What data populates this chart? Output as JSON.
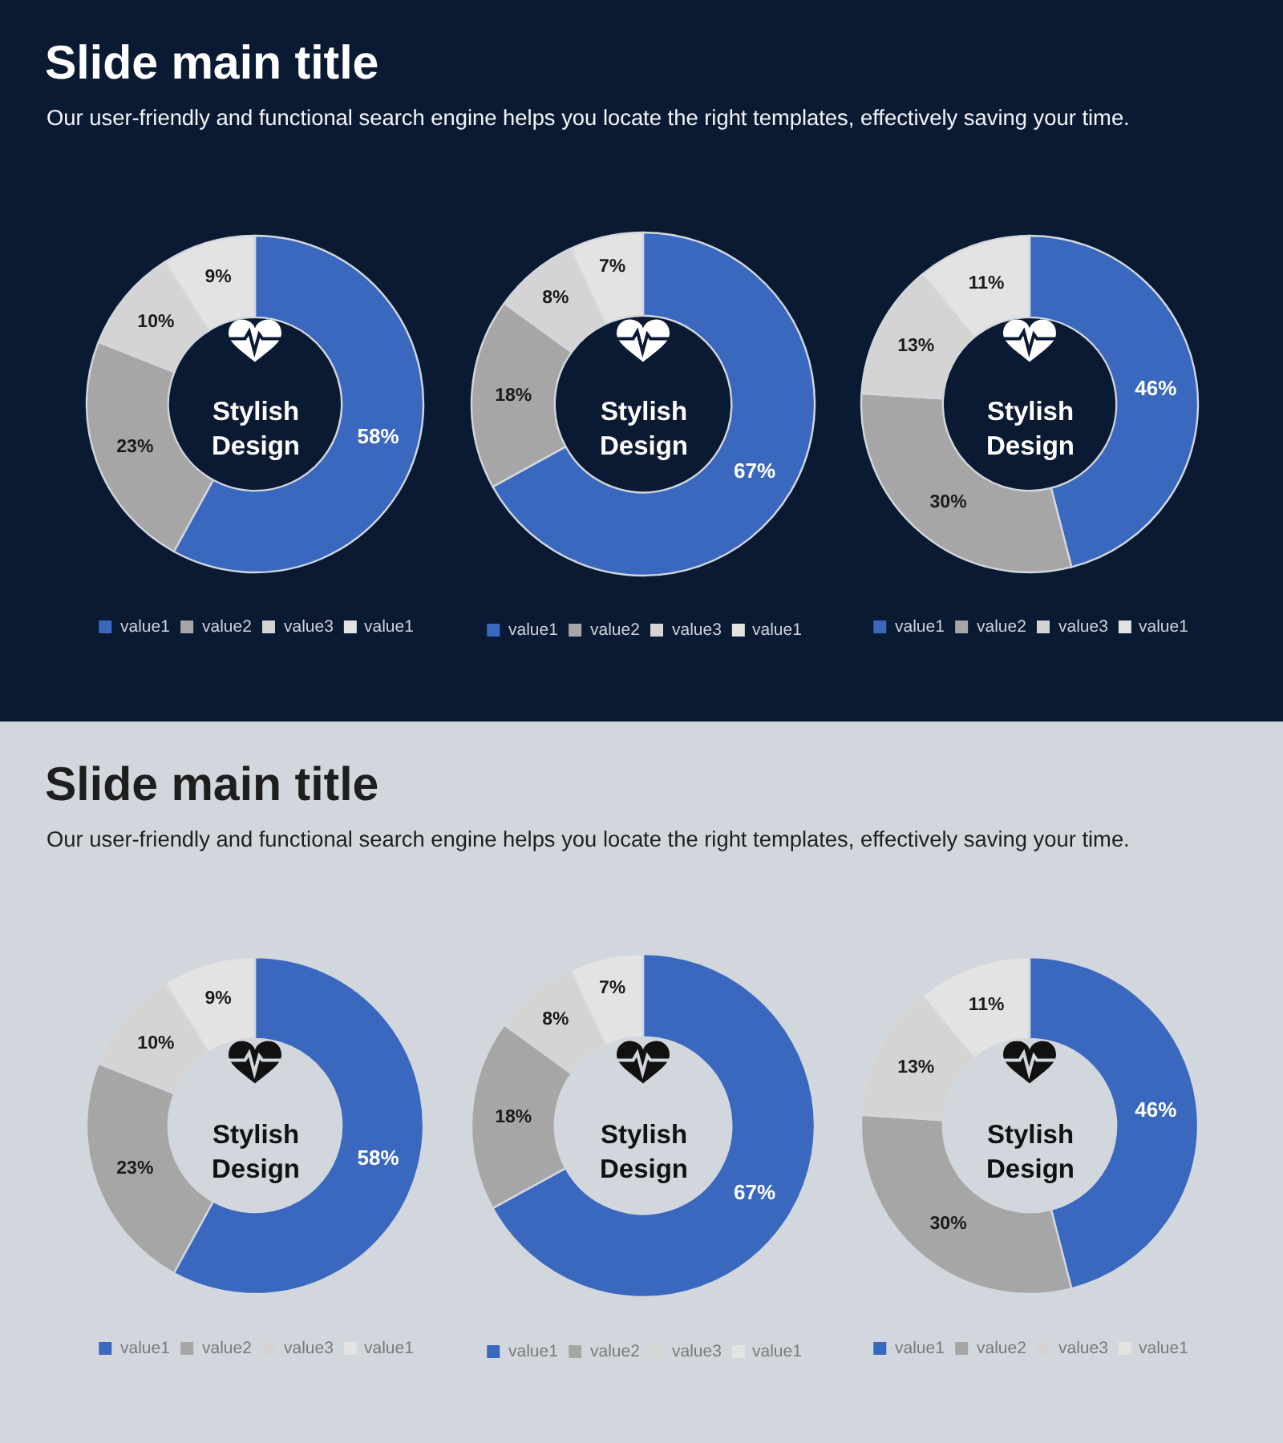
{
  "chart_data": [
    {
      "type": "donut",
      "title": "Slide main title",
      "subtitle": "Our user-friendly and functional search engine helps you locate the right templates, effectively saving your time.",
      "categories": [
        "value1",
        "value2",
        "value3",
        "value1"
      ],
      "values": [
        58,
        23,
        10,
        9
      ],
      "colors": [
        "#3a68bf",
        "#a6a6a6",
        "#d4d4d4",
        "#e3e3e3"
      ],
      "value_labels": [
        "58%",
        "23%",
        "10%",
        "9%"
      ],
      "annotations": [
        "Stylish\nDesign"
      ],
      "legend": "bottom"
    },
    {
      "type": "donut",
      "categories": [
        "value1",
        "value2",
        "value3",
        "value1"
      ],
      "values": [
        67,
        18,
        8,
        7
      ],
      "colors": [
        "#3a68bf",
        "#a6a6a6",
        "#d4d4d4",
        "#e3e3e3"
      ],
      "value_labels": [
        "67%",
        "18%",
        "8%",
        "7%"
      ],
      "annotations": [
        "Stylish\nDesign"
      ],
      "legend": "bottom"
    },
    {
      "type": "donut",
      "categories": [
        "value1",
        "value2",
        "value3",
        "value1"
      ],
      "values": [
        46,
        30,
        13,
        11
      ],
      "colors": [
        "#3a68bf",
        "#a6a6a6",
        "#d4d4d4",
        "#e3e3e3"
      ],
      "value_labels": [
        "46%",
        "30%",
        "13%",
        "11%"
      ],
      "annotations": [
        "Stylish\nDesign"
      ],
      "legend": "bottom"
    },
    {
      "type": "donut",
      "title": "Slide main title",
      "subtitle": "Our user-friendly and functional search engine helps you locate the right templates, effectively saving your time.",
      "categories": [
        "value1",
        "value2",
        "value3",
        "value1"
      ],
      "values": [
        58,
        23,
        10,
        9
      ],
      "colors": [
        "#3a68bf",
        "#a6a6a6",
        "#d4d4d4",
        "#e3e3e3"
      ],
      "value_labels": [
        "58%",
        "23%",
        "10%",
        "9%"
      ],
      "annotations": [
        "Stylish\nDesign"
      ],
      "legend": "bottom"
    },
    {
      "type": "donut",
      "categories": [
        "value1",
        "value2",
        "value3",
        "value1"
      ],
      "values": [
        67,
        18,
        8,
        7
      ],
      "colors": [
        "#3a68bf",
        "#a6a6a6",
        "#d4d4d4",
        "#e3e3e3"
      ],
      "value_labels": [
        "67%",
        "18%",
        "8%",
        "7%"
      ],
      "annotations": [
        "Stylish\nDesign"
      ],
      "legend": "bottom"
    },
    {
      "type": "donut",
      "categories": [
        "value1",
        "value2",
        "value3",
        "value1"
      ],
      "values": [
        46,
        30,
        13,
        11
      ],
      "colors": [
        "#3a68bf",
        "#a6a6a6",
        "#d4d4d4",
        "#e3e3e3"
      ],
      "value_labels": [
        "46%",
        "30%",
        "13%",
        "11%"
      ],
      "annotations": [
        "Stylish\nDesign"
      ],
      "legend": "bottom"
    }
  ]
}
